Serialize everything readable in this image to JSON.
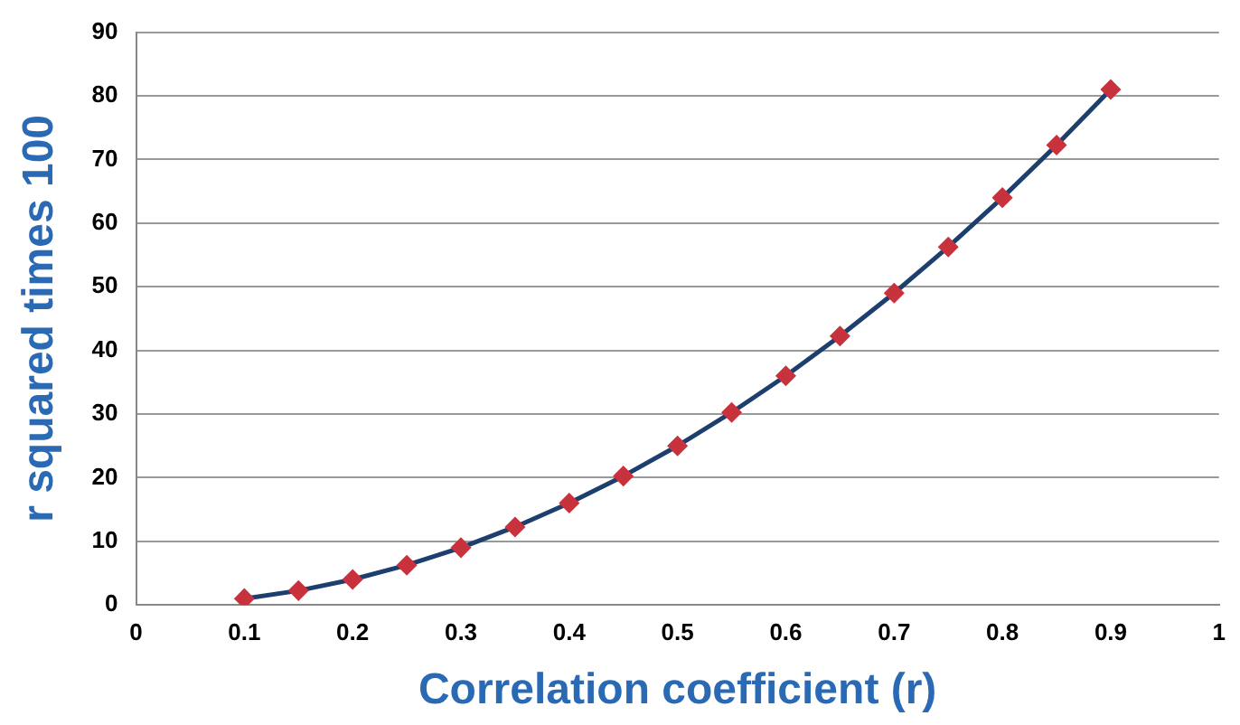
{
  "chart_data": {
    "type": "line",
    "xlabel": "Correlation coefficient (r)",
    "ylabel": "r squared times 100",
    "x": [
      0.1,
      0.15,
      0.2,
      0.25,
      0.3,
      0.35,
      0.4,
      0.45,
      0.5,
      0.55,
      0.6,
      0.65,
      0.7,
      0.75,
      0.8,
      0.85,
      0.9
    ],
    "series": [
      {
        "color": "#1c3f6e",
        "values": [
          1,
          2.25,
          4,
          6.25,
          9,
          12.25,
          16,
          20.25,
          25,
          30.25,
          36,
          42.25,
          49,
          56.25,
          64,
          72.25,
          81
        ]
      }
    ],
    "xlim": [
      0,
      1
    ],
    "xticks": [
      0,
      0.1,
      0.2,
      0.3,
      0.4,
      0.5,
      0.6,
      0.7,
      0.8,
      0.9,
      1
    ],
    "ylim": [
      0,
      90
    ],
    "yticks": [
      0,
      10,
      20,
      30,
      40,
      50,
      60,
      70,
      80,
      90
    ],
    "grid": "y",
    "legend": false,
    "marker": "diamond",
    "line_style": "solid"
  }
}
